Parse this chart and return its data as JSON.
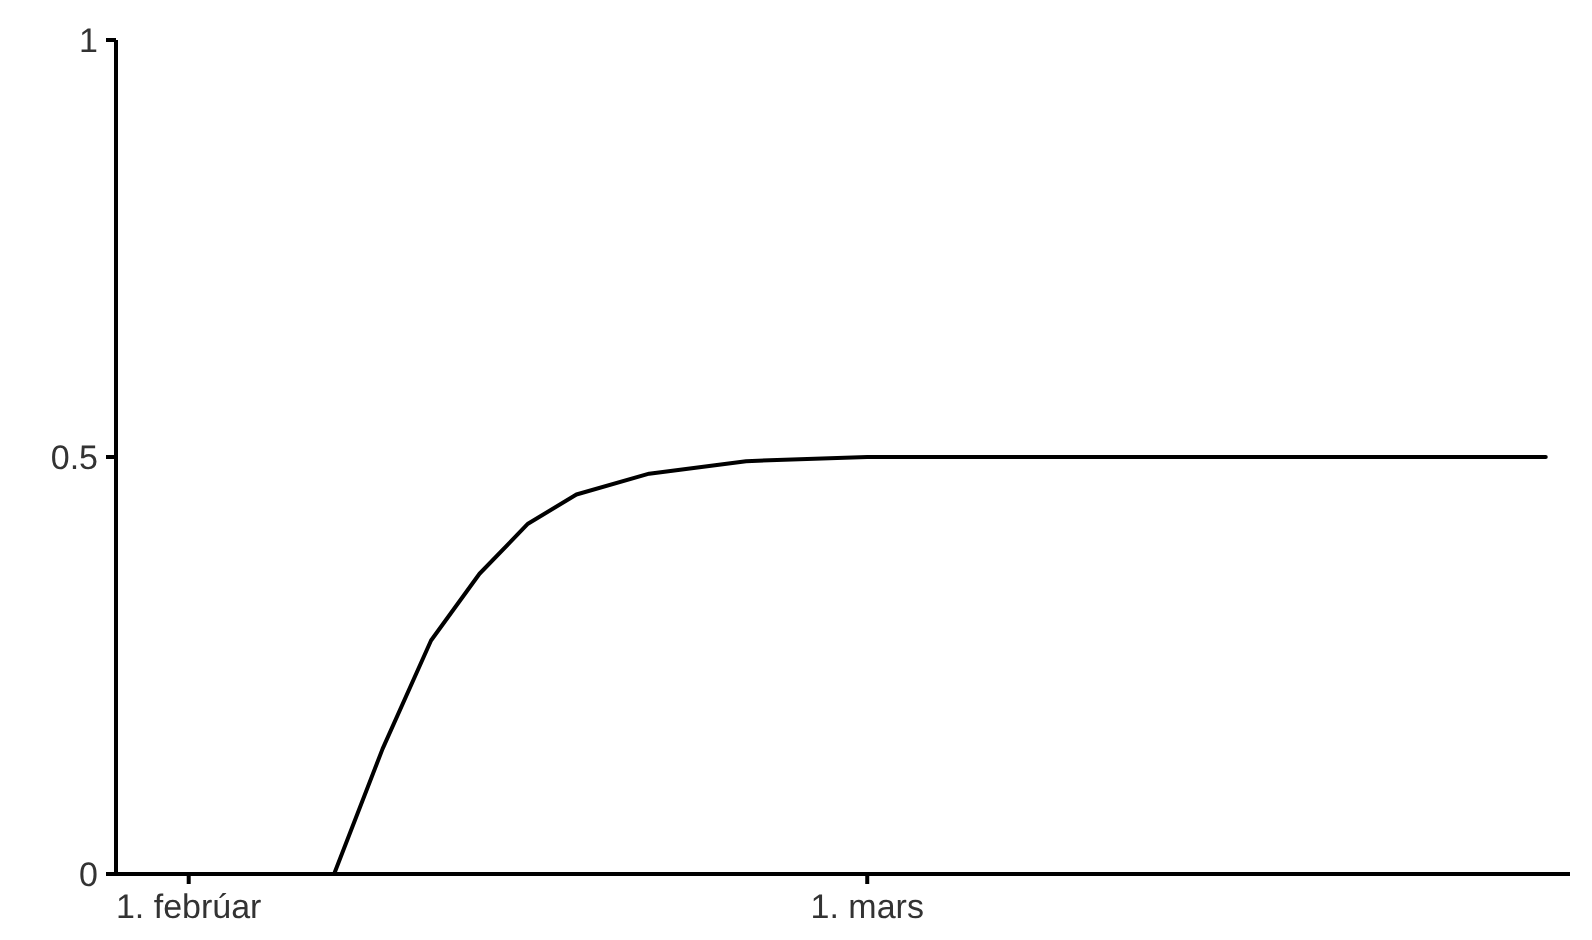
{
  "chart_data": {
    "type": "line",
    "x": [
      "--01-29",
      "--02-07",
      "--02-09",
      "--02-11",
      "--02-13",
      "--02-15",
      "--02-17",
      "--02-20",
      "--02-24",
      "--03-01",
      "--03-29"
    ],
    "series": [
      {
        "color": "#000000",
        "values": [
          0,
          0,
          0.15,
          0.28,
          0.36,
          0.42,
          0.455,
          0.48,
          0.495,
          0.5,
          0.5
        ]
      }
    ],
    "xlim": [
      "--01-29",
      "--03-30"
    ],
    "xticks": [
      {
        "value": "--02-01",
        "label": "1. febrúar"
      },
      {
        "value": "--03-01",
        "label": "1. mars"
      }
    ],
    "ylim": [
      0,
      1
    ],
    "yticks": [
      0,
      0.5,
      1
    ],
    "marker": "none",
    "line_style": "solid"
  }
}
